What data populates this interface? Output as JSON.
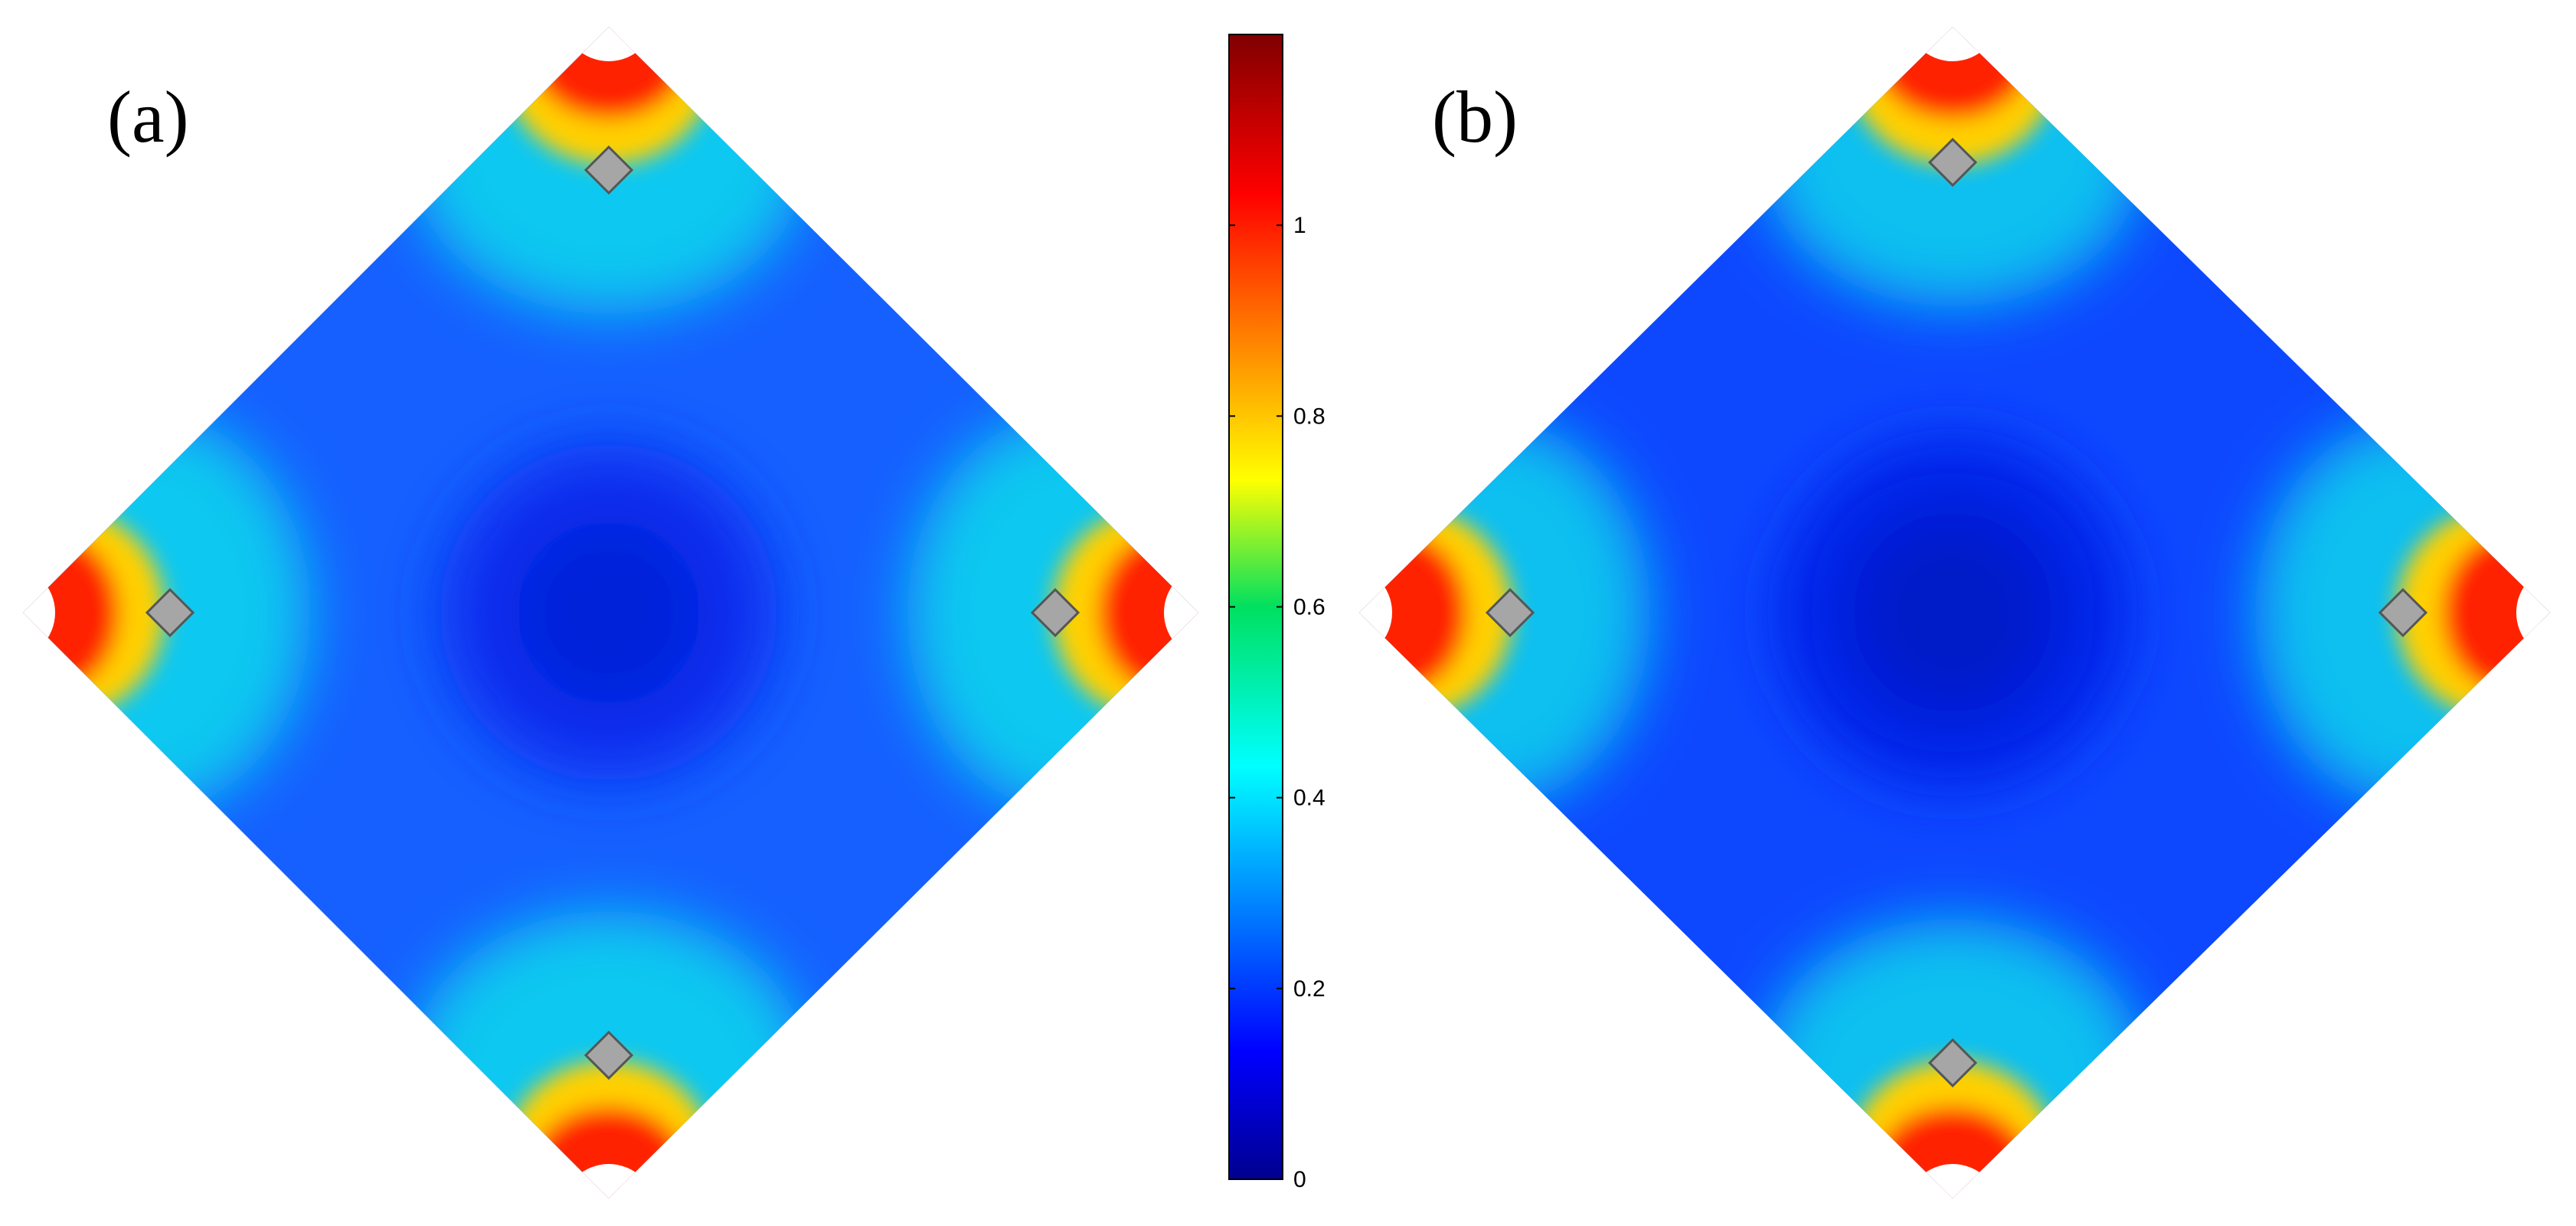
{
  "panels": [
    {
      "label": "(a)",
      "max_value": 1.2
    },
    {
      "label": "(b)",
      "max_value": 1.2
    }
  ],
  "colorbar": {
    "colormap": "jet",
    "min": 0,
    "max": 1.2,
    "ticks": [
      {
        "value": 0,
        "label": "0"
      },
      {
        "value": 0.2,
        "label": "0.2"
      },
      {
        "value": 0.4,
        "label": "0.4"
      },
      {
        "value": 0.6,
        "label": "0.6"
      },
      {
        "value": 0.8,
        "label": "0.8"
      },
      {
        "value": 1,
        "label": "1"
      }
    ]
  },
  "colors": {
    "marker_fill": "#a6a6a6",
    "marker_stroke": "#555555"
  }
}
